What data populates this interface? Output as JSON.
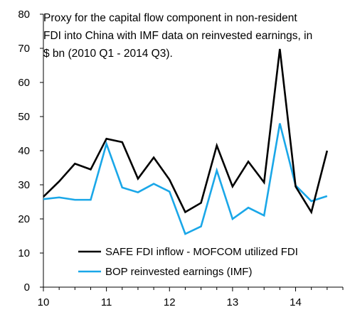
{
  "chart_data": {
    "type": "line",
    "title_lines": [
      "Proxy for the capital flow component in non-resident",
      "FDI into China with IMF data on reinvested earnings, in",
      "$ bn (2010 Q1 - 2014 Q3)."
    ],
    "xlabel": "",
    "ylabel": "",
    "x_tick_labels": [
      "10",
      "11",
      "12",
      "13",
      "14"
    ],
    "y_tick_labels": [
      "0",
      "10",
      "20",
      "30",
      "40",
      "50",
      "60",
      "70",
      "80"
    ],
    "ylim": [
      0,
      80
    ],
    "xlim": [
      10,
      14.75
    ],
    "grid": false,
    "legend_position": "bottom-center",
    "x": [
      10.0,
      10.25,
      10.5,
      10.75,
      11.0,
      11.25,
      11.5,
      11.75,
      12.0,
      12.25,
      12.5,
      12.75,
      13.0,
      13.25,
      13.5,
      13.75,
      14.0,
      14.25,
      14.5
    ],
    "series": [
      {
        "name": "SAFE FDI inflow - MOFCOM utilized FDI",
        "color": "#000000",
        "values": [
          26.5,
          31.0,
          36.2,
          34.5,
          43.5,
          42.5,
          31.8,
          38.0,
          31.5,
          22.0,
          24.7,
          41.5,
          29.5,
          36.8,
          30.7,
          69.8,
          29.5,
          22.0,
          40.0
        ]
      },
      {
        "name": "BOP reinvested earnings (IMF)",
        "color": "#1aa7e8",
        "values": [
          25.8,
          26.3,
          25.6,
          25.6,
          42.0,
          29.2,
          27.8,
          30.3,
          28.0,
          15.6,
          17.8,
          34.2,
          20.0,
          23.3,
          21.0,
          48.0,
          29.8,
          25.2,
          26.7
        ]
      }
    ]
  }
}
